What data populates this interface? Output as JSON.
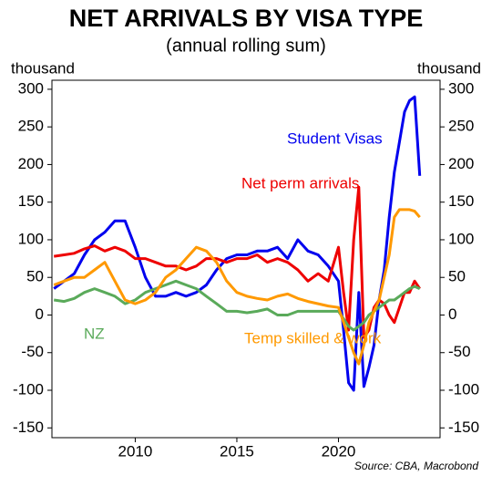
{
  "chart_data": {
    "type": "line",
    "title": "NET ARRIVALS BY VISA TYPE",
    "subtitle": "(annual rolling sum)",
    "y_label": "thousand",
    "y2_label": "thousand",
    "source": "Source: CBA, Macrobond",
    "x": [
      2006,
      2006.5,
      2007,
      2007.5,
      2008,
      2008.5,
      2009,
      2009.5,
      2010,
      2010.5,
      2011,
      2011.5,
      2012,
      2012.5,
      2013,
      2013.5,
      2014,
      2014.5,
      2015,
      2015.5,
      2016,
      2016.5,
      2017,
      2017.5,
      2018,
      2018.5,
      2019,
      2019.5,
      2020,
      2020.25,
      2020.5,
      2020.75,
      2021,
      2021.25,
      2021.5,
      2021.75,
      2022,
      2022.25,
      2022.5,
      2022.75,
      2023,
      2023.25,
      2023.5,
      2023.75,
      2024
    ],
    "series": [
      {
        "name": "Student Visas",
        "color": "#0000ee",
        "values": [
          35,
          45,
          55,
          80,
          100,
          110,
          125,
          125,
          90,
          50,
          25,
          25,
          30,
          25,
          30,
          40,
          60,
          75,
          80,
          80,
          85,
          85,
          90,
          75,
          100,
          85,
          80,
          65,
          45,
          -20,
          -90,
          -100,
          30,
          -95,
          -70,
          -40,
          20,
          60,
          130,
          190,
          230,
          270,
          285,
          290,
          185
        ]
      },
      {
        "name": "Net perm arrivals",
        "color": "#ee0000",
        "values": [
          78,
          80,
          82,
          88,
          92,
          85,
          90,
          85,
          75,
          75,
          70,
          65,
          65,
          60,
          65,
          75,
          75,
          70,
          75,
          75,
          80,
          70,
          75,
          70,
          60,
          45,
          55,
          45,
          90,
          30,
          -20,
          100,
          170,
          -30,
          -20,
          10,
          20,
          15,
          0,
          -10,
          10,
          30,
          30,
          45,
          35
        ]
      },
      {
        "name": "NZ",
        "color": "#5aaa5a",
        "values": [
          20,
          18,
          22,
          30,
          35,
          30,
          25,
          15,
          20,
          30,
          35,
          40,
          45,
          40,
          35,
          25,
          15,
          5,
          5,
          3,
          5,
          8,
          0,
          0,
          5,
          5,
          5,
          5,
          5,
          -5,
          -15,
          -20,
          -15,
          -10,
          0,
          5,
          10,
          15,
          20,
          20,
          25,
          30,
          35,
          38,
          35
        ]
      },
      {
        "name": "Temp skilled & work",
        "color": "#ff9900",
        "values": [
          40,
          45,
          50,
          50,
          60,
          70,
          45,
          20,
          15,
          20,
          30,
          50,
          60,
          75,
          90,
          85,
          70,
          45,
          30,
          25,
          22,
          20,
          25,
          28,
          22,
          18,
          15,
          12,
          10,
          -10,
          -30,
          -50,
          -65,
          -40,
          -10,
          5,
          20,
          50,
          80,
          130,
          140,
          140,
          140,
          138,
          130
        ]
      }
    ],
    "xlim": [
      2005.9,
      2025.0
    ],
    "xticks": [
      2010,
      2015,
      2020
    ],
    "ylim": [
      -163,
      312
    ],
    "yticks": [
      -150,
      -100,
      -50,
      0,
      50,
      100,
      150,
      200,
      250,
      300
    ]
  }
}
